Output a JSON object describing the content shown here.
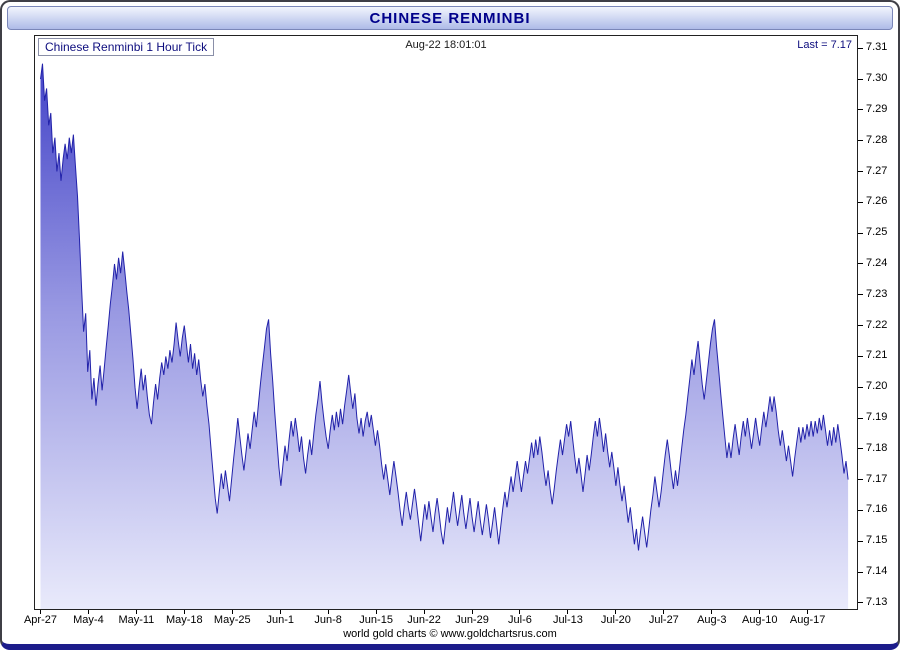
{
  "window": {
    "title": "CHINESE RENMINBI"
  },
  "chart": {
    "label": "Chinese Renminbi 1 Hour Tick",
    "timestamp": "Aug-22  18:01:01",
    "last_label": "Last = 7.17",
    "footer_credit": "world gold charts © www.goldchartsrus.com"
  },
  "colors": {
    "title_text": "#00008b",
    "navy_edge": "#1c1c8a",
    "titlebar_top": "#f2f5fd",
    "titlebar_bottom": "#aebbe8",
    "line": "#2222aa",
    "fill_top": "#4444c8",
    "fill_mid": "#9898e2",
    "fill_bottom": "#e9eafb"
  },
  "chart_data": {
    "type": "area",
    "title": "Chinese Renminbi 1 Hour Tick",
    "as_of": "Aug-22 18:01:01",
    "last": 7.17,
    "grid": "none",
    "y_axis_side": "right",
    "x_unit": "days since Apr-27",
    "x_start": 0,
    "x_step": 0.3,
    "x_domain": [
      -0.8,
      119.2
    ],
    "ylim": [
      7.128,
      7.314
    ],
    "y_ticks": [
      "7.31",
      "7.30",
      "7.29",
      "7.28",
      "7.27",
      "7.26",
      "7.25",
      "7.24",
      "7.23",
      "7.22",
      "7.21",
      "7.20",
      "7.19",
      "7.18",
      "7.17",
      "7.16",
      "7.15",
      "7.14",
      "7.13"
    ],
    "x_tick_days": [
      0,
      7,
      14,
      21,
      28,
      35,
      42,
      49,
      56,
      63,
      70,
      77,
      84,
      91,
      98,
      105,
      112
    ],
    "x_tick_labels": [
      "Apr-27",
      "May-4",
      "May-11",
      "May-18",
      "May-25",
      "Jun-1",
      "Jun-8",
      "Jun-15",
      "Jun-22",
      "Jun-29",
      "Jul-6",
      "Jul-13",
      "Jul-20",
      "Jul-27",
      "Aug-3",
      "Aug-10",
      "Aug-17"
    ],
    "values": [
      7.3,
      7.305,
      7.293,
      7.297,
      7.285,
      7.289,
      7.276,
      7.281,
      7.27,
      7.276,
      7.267,
      7.274,
      7.279,
      7.274,
      7.281,
      7.276,
      7.282,
      7.272,
      7.262,
      7.248,
      7.232,
      7.218,
      7.224,
      7.205,
      7.212,
      7.196,
      7.203,
      7.194,
      7.201,
      7.207,
      7.199,
      7.206,
      7.213,
      7.22,
      7.227,
      7.233,
      7.24,
      7.235,
      7.242,
      7.237,
      7.244,
      7.238,
      7.231,
      7.225,
      7.217,
      7.209,
      7.2,
      7.193,
      7.2,
      7.206,
      7.199,
      7.204,
      7.197,
      7.191,
      7.188,
      7.195,
      7.201,
      7.196,
      7.203,
      7.208,
      7.204,
      7.21,
      7.206,
      7.212,
      7.208,
      7.214,
      7.221,
      7.215,
      7.21,
      7.216,
      7.22,
      7.214,
      7.208,
      7.214,
      7.206,
      7.211,
      7.204,
      7.209,
      7.202,
      7.197,
      7.201,
      7.194,
      7.188,
      7.18,
      7.172,
      7.164,
      7.159,
      7.166,
      7.172,
      7.167,
      7.173,
      7.168,
      7.163,
      7.17,
      7.177,
      7.183,
      7.19,
      7.184,
      7.178,
      7.173,
      7.179,
      7.185,
      7.18,
      7.186,
      7.192,
      7.187,
      7.194,
      7.201,
      7.207,
      7.213,
      7.219,
      7.222,
      7.211,
      7.202,
      7.192,
      7.183,
      7.174,
      7.168,
      7.175,
      7.181,
      7.176,
      7.183,
      7.189,
      7.184,
      7.19,
      7.185,
      7.179,
      7.184,
      7.177,
      7.172,
      7.178,
      7.183,
      7.178,
      7.185,
      7.191,
      7.196,
      7.202,
      7.195,
      7.189,
      7.184,
      7.18,
      7.186,
      7.191,
      7.186,
      7.192,
      7.187,
      7.193,
      7.188,
      7.194,
      7.199,
      7.204,
      7.198,
      7.193,
      7.198,
      7.19,
      7.185,
      7.19,
      7.184,
      7.189,
      7.192,
      7.187,
      7.191,
      7.186,
      7.181,
      7.186,
      7.181,
      7.175,
      7.17,
      7.175,
      7.17,
      7.165,
      7.171,
      7.176,
      7.171,
      7.166,
      7.16,
      7.155,
      7.161,
      7.166,
      7.161,
      7.157,
      7.162,
      7.167,
      7.162,
      7.156,
      7.15,
      7.156,
      7.162,
      7.157,
      7.163,
      7.158,
      7.153,
      7.159,
      7.164,
      7.159,
      7.153,
      7.149,
      7.155,
      7.161,
      7.156,
      7.161,
      7.166,
      7.16,
      7.155,
      7.16,
      7.165,
      7.159,
      7.154,
      7.159,
      7.164,
      7.158,
      7.153,
      7.158,
      7.163,
      7.157,
      7.152,
      7.157,
      7.162,
      7.157,
      7.151,
      7.156,
      7.161,
      7.155,
      7.149,
      7.155,
      7.161,
      7.166,
      7.161,
      7.166,
      7.171,
      7.166,
      7.171,
      7.176,
      7.171,
      7.166,
      7.171,
      7.176,
      7.172,
      7.177,
      7.182,
      7.177,
      7.183,
      7.178,
      7.184,
      7.179,
      7.173,
      7.168,
      7.173,
      7.167,
      7.162,
      7.167,
      7.173,
      7.178,
      7.183,
      7.178,
      7.183,
      7.188,
      7.184,
      7.189,
      7.183,
      7.177,
      7.172,
      7.177,
      7.172,
      7.166,
      7.172,
      7.178,
      7.173,
      7.178,
      7.184,
      7.189,
      7.184,
      7.19,
      7.185,
      7.179,
      7.185,
      7.179,
      7.174,
      7.179,
      7.174,
      7.168,
      7.174,
      7.168,
      7.163,
      7.168,
      7.162,
      7.156,
      7.161,
      7.155,
      7.149,
      7.154,
      7.147,
      7.153,
      7.158,
      7.153,
      7.148,
      7.154,
      7.16,
      7.165,
      7.171,
      7.166,
      7.161,
      7.166,
      7.172,
      7.178,
      7.183,
      7.178,
      7.172,
      7.167,
      7.173,
      7.168,
      7.174,
      7.18,
      7.186,
      7.191,
      7.197,
      7.203,
      7.209,
      7.204,
      7.21,
      7.215,
      7.208,
      7.201,
      7.196,
      7.202,
      7.208,
      7.214,
      7.219,
      7.222,
      7.213,
      7.206,
      7.198,
      7.191,
      7.184,
      7.177,
      7.182,
      7.177,
      7.183,
      7.188,
      7.183,
      7.178,
      7.184,
      7.189,
      7.184,
      7.19,
      7.185,
      7.18,
      7.185,
      7.19,
      7.185,
      7.181,
      7.187,
      7.192,
      7.187,
      7.192,
      7.197,
      7.192,
      7.197,
      7.192,
      7.186,
      7.181,
      7.186,
      7.181,
      7.176,
      7.181,
      7.176,
      7.171,
      7.177,
      7.182,
      7.187,
      7.182,
      7.187,
      7.183,
      7.188,
      7.184,
      7.189,
      7.184,
      7.189,
      7.185,
      7.19,
      7.186,
      7.191,
      7.186,
      7.181,
      7.186,
      7.181,
      7.187,
      7.182,
      7.188,
      7.183,
      7.178,
      7.172,
      7.176,
      7.17
    ]
  }
}
